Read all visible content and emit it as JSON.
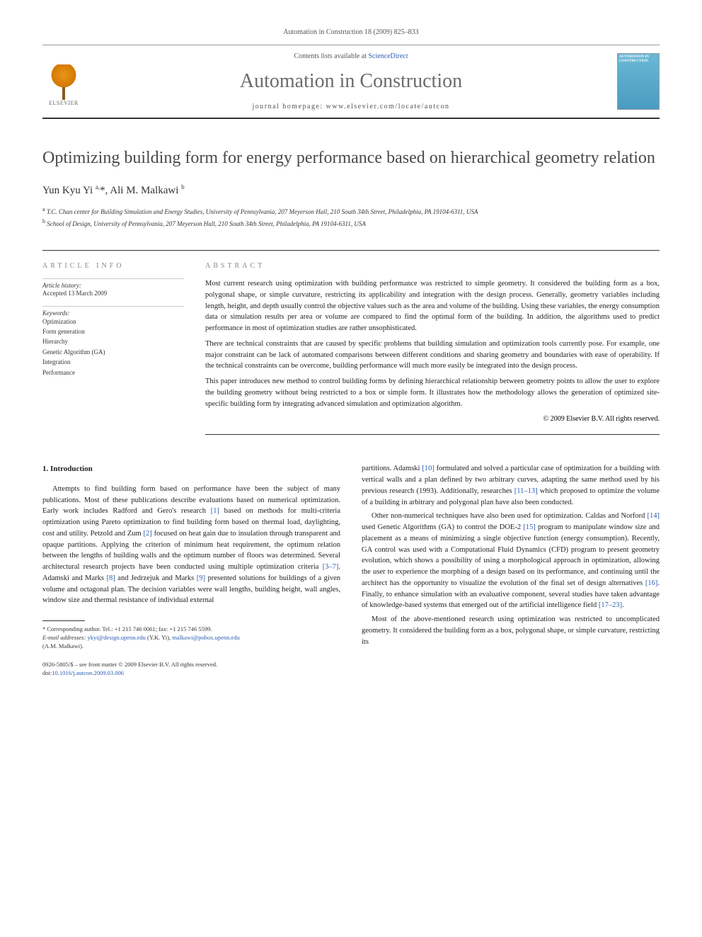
{
  "journal_ref": "Automation in Construction 18 (2009) 825–833",
  "header": {
    "contents_prefix": "Contents lists available at ",
    "contents_link": "ScienceDirect",
    "journal_title": "Automation in Construction",
    "homepage_prefix": "journal homepage: ",
    "homepage_url": "www.elsevier.com/locate/autcon",
    "elsevier_label": "ELSEVIER",
    "cover_label": "AUTOMATION IN CONSTRUCTION"
  },
  "article": {
    "title": "Optimizing building form for energy performance based on hierarchical geometry relation",
    "authors_html": "Yun Kyu Yi <sup>a,</sup>*, Ali M. Malkawi <sup>b</sup>",
    "affiliations": [
      {
        "sup": "a",
        "text": "T.C. Chan center for Building Simulation and Energy Studies, University of Pennsylvania, 207 Meyerson Hall, 210 South 34th Street, Philadelphia, PA 19104-6311, USA"
      },
      {
        "sup": "b",
        "text": "School of Design, University of Pennsylvania, 207 Meyerson Hall, 210 South 34th Street, Philadelphia, PA 19104-6311, USA"
      }
    ]
  },
  "info": {
    "heading": "ARTICLE INFO",
    "history_label": "Article history:",
    "accepted": "Accepted 13 March 2009",
    "keywords_label": "Keywords:",
    "keywords": [
      "Optimization",
      "Form generation",
      "Hierarchy",
      "Genetic Algorithm (GA)",
      "Integration",
      "Performance"
    ]
  },
  "abstract": {
    "heading": "ABSTRACT",
    "paragraphs": [
      "Most current research using optimization with building performance was restricted to simple geometry. It considered the building form as a box, polygonal shape, or simple curvature, restricting its applicability and integration with the design process. Generally, geometry variables including length, height, and depth usually control the objective values such as the area and volume of the building. Using these variables, the energy consumption data or simulation results per area or volume are compared to find the optimal form of the building. In addition, the algorithms used to predict performance in most of optimization studies are rather unsophisticated.",
      "There are technical constraints that are caused by specific problems that building simulation and optimization tools currently pose. For example, one major constraint can be lack of automated comparisons between different conditions and sharing geometry and boundaries with ease of operability. If the technical constraints can be overcome, building performance will much more easily be integrated into the design process.",
      "This paper introduces new method to control building forms by defining hierarchical relationship between geometry points to allow the user to explore the building geometry without being restricted to a box or simple form. It illustrates how the methodology allows the generation of optimized site-specific building form by integrating advanced simulation and optimization algorithm."
    ],
    "copyright": "© 2009 Elsevier B.V. All rights reserved."
  },
  "body": {
    "section_heading": "1. Introduction",
    "col1": "Attempts to find building form based on performance have been the subject of many publications. Most of these publications describe evaluations based on numerical optimization. Early work includes Radford and Gero's research [1] based on methods for multi-criteria optimization using Pareto optimization to find building form based on thermal load, daylighting, cost and utility. Petzold and Zum [2] focused on heat gain due to insulation through transparent and opaque partitions. Applying the criterion of minimum heat requirement, the optimum relation between the lengths of building walls and the optimum number of floors was determined. Several architectural research projects have been conducted using multiple optimization criteria [3–7]. Adamski and Marks [8] and Jedrzejuk and Marks [9] presented solutions for buildings of a given volume and octagonal plan. The decision variables were wall lengths, building height, wall angles, window size and thermal resistance of individual external",
    "col2_p1": "partitions. Adamski [10] formulated and solved a particular case of optimization for a building with vertical walls and a plan defined by two arbitrary curves, adapting the same method used by his previous research (1993). Additionally, researches [11–13] which proposed to optimize the volume of a building in arbitrary and polygonal plan have also been conducted.",
    "col2_p2": "Other non-numerical techniques have also been used for optimization. Caldas and Norford [14] used Genetic Algorithms (GA) to control the DOE-2 [15] program to manipulate window size and placement as a means of minimizing a single objective function (energy consumption). Recently, GA control was used with a Computational Fluid Dynamics (CFD) program to present geometry evolution, which shows a possibility of using a morphological approach in optimization, allowing the user to experience the morphing of a design based on its performance, and continuing until the architect has the opportunity to visualize the evolution of the final set of design alternatives [16]. Finally, to enhance simulation with an evaluative component, several studies have taken advantage of knowledge-based systems that emerged out of the artificial intelligence field [17–23].",
    "col2_p3": "Most of the above-mentioned research using optimization was restricted to uncomplicated geometry. It considered the building form as a box, polygonal shape, or simple curvature, restricting its"
  },
  "footnotes": {
    "corresponding": "* Corresponding author. Tel.: +1 215 746 0061; fax: +1 215 746 5599.",
    "email_label": "E-mail addresses: ",
    "email1": "ykyi@design.upenn.edu",
    "email1_who": " (Y.K. Yi), ",
    "email2": "malkawi@pobox.upenn.edu",
    "email2_who": "(A.M. Malkawi)."
  },
  "footer": {
    "issn_line": "0926-5805/$ – see front matter © 2009 Elsevier B.V. All rights reserved.",
    "doi_prefix": "doi:",
    "doi": "10.1016/j.autcon.2009.03.006"
  },
  "style": {
    "link_color": "#2a5db0",
    "journal_title_color": "#6b6b6b",
    "article_title_color": "#494949",
    "body_font_size_pt": 10.5,
    "title_font_size_pt": 24,
    "journal_title_font_size_pt": 28
  }
}
